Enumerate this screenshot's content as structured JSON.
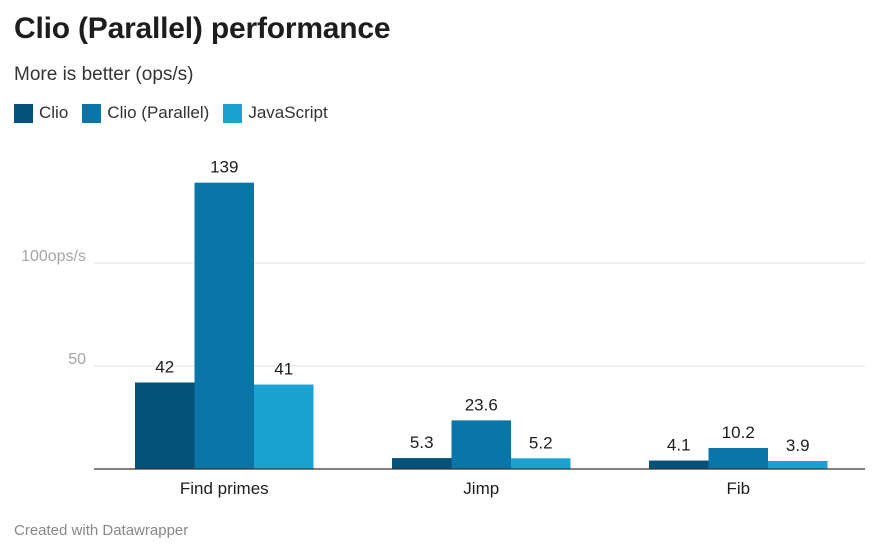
{
  "chart_data": {
    "type": "bar",
    "title": "Clio (Parallel) performance",
    "subtitle": "More is better (ops/s)",
    "categories": [
      "Find primes",
      "Jimp",
      "Fib"
    ],
    "series": [
      {
        "name": "Clio",
        "values": [
          42,
          5.3,
          4.1
        ],
        "color": "#04517a"
      },
      {
        "name": "Clio (Parallel)",
        "values": [
          139,
          23.6,
          10.2
        ],
        "color": "#0a76a7"
      },
      {
        "name": "JavaScript",
        "values": [
          41,
          5.2,
          3.9
        ],
        "color": "#1aa2d1"
      }
    ],
    "data_labels": [
      [
        "42",
        "5.3",
        "4.1"
      ],
      [
        "139",
        "23.6",
        "10.2"
      ],
      [
        "41",
        "5.2",
        "3.9"
      ]
    ],
    "ylim": [
      0,
      150
    ],
    "yticks": [
      {
        "value": 50,
        "label": "50"
      },
      {
        "value": 100,
        "label": "100ops/s"
      }
    ],
    "grid": true,
    "legend_position": "top-left"
  },
  "footer": "Created with Datawrapper"
}
